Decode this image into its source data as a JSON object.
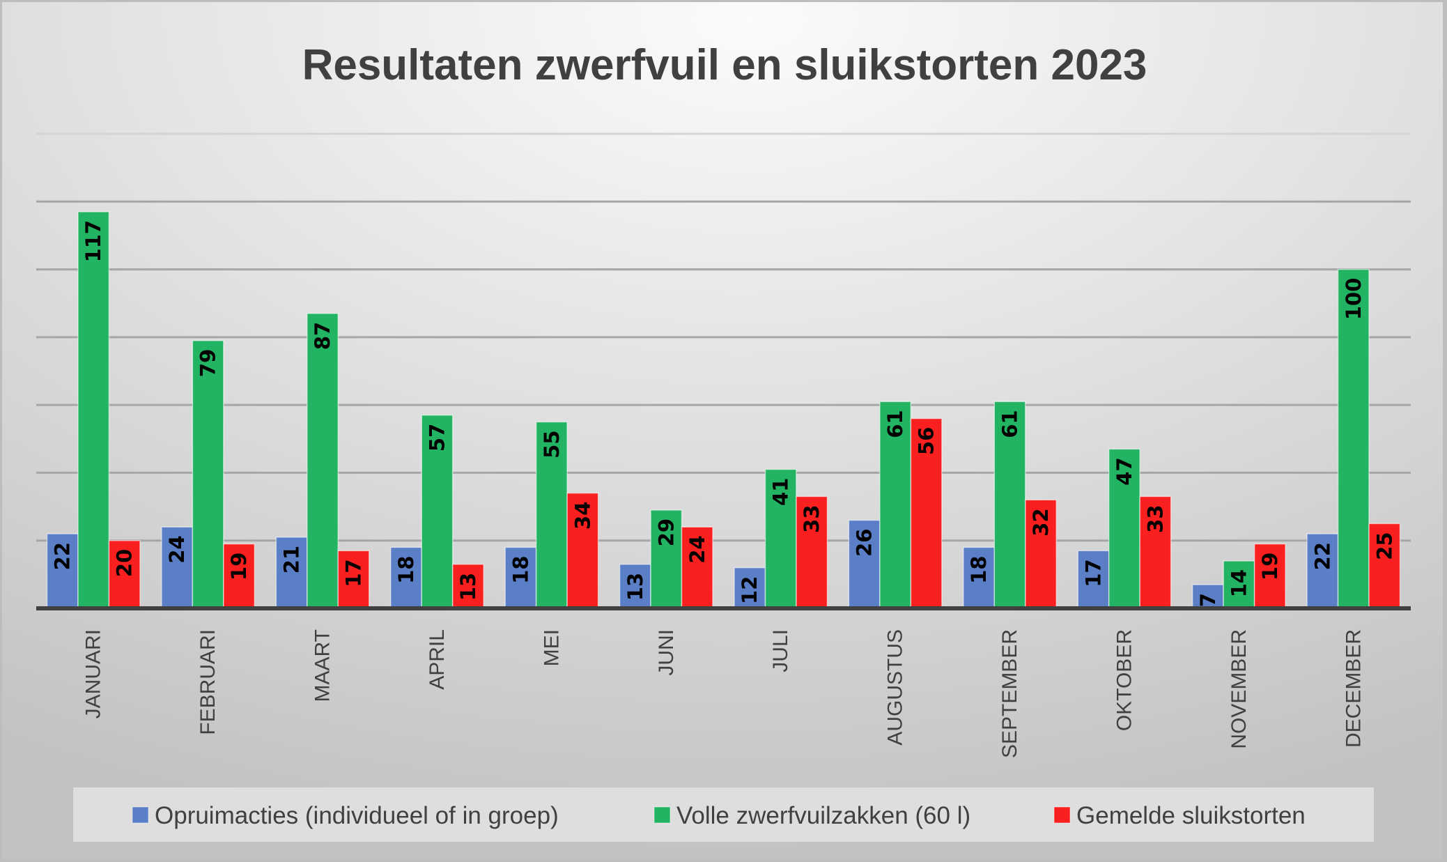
{
  "chart_data": {
    "type": "bar",
    "title": "Resultaten zwerfvuil en sluikstorten 2023",
    "xlabel": "",
    "ylabel": "",
    "ylim": [
      0,
      140
    ],
    "grid": true,
    "grid_step": 20,
    "y_tick_labels_visible": false,
    "legend_position": "bottom",
    "data_labels": "inside-end-rotated",
    "categories": [
      "JANUARI",
      "FEBRUARI",
      "MAART",
      "APRIL",
      "MEI",
      "JUNI",
      "JULI",
      "AUGUSTUS",
      "SEPTEMBER",
      "OKTOBER",
      "NOVEMBER",
      "DECEMBER"
    ],
    "series": [
      {
        "name": "Opruimacties (individueel of in groep)",
        "color": "#5B7FC7",
        "values": [
          22,
          24,
          21,
          18,
          18,
          13,
          12,
          26,
          18,
          17,
          7,
          22
        ]
      },
      {
        "name": "Volle zwerfvuilzakken (60 l)",
        "color": "#22B463",
        "values": [
          117,
          79,
          87,
          57,
          55,
          29,
          41,
          61,
          61,
          47,
          14,
          100
        ]
      },
      {
        "name": "Gemelde sluikstorten",
        "color": "#FA2020",
        "values": [
          20,
          19,
          17,
          13,
          34,
          24,
          33,
          56,
          32,
          33,
          19,
          25
        ]
      }
    ]
  },
  "colors": {
    "title": "#404040",
    "axis": "#404040",
    "gridline": "#a6a6a6",
    "legend_background": "#dedede"
  }
}
